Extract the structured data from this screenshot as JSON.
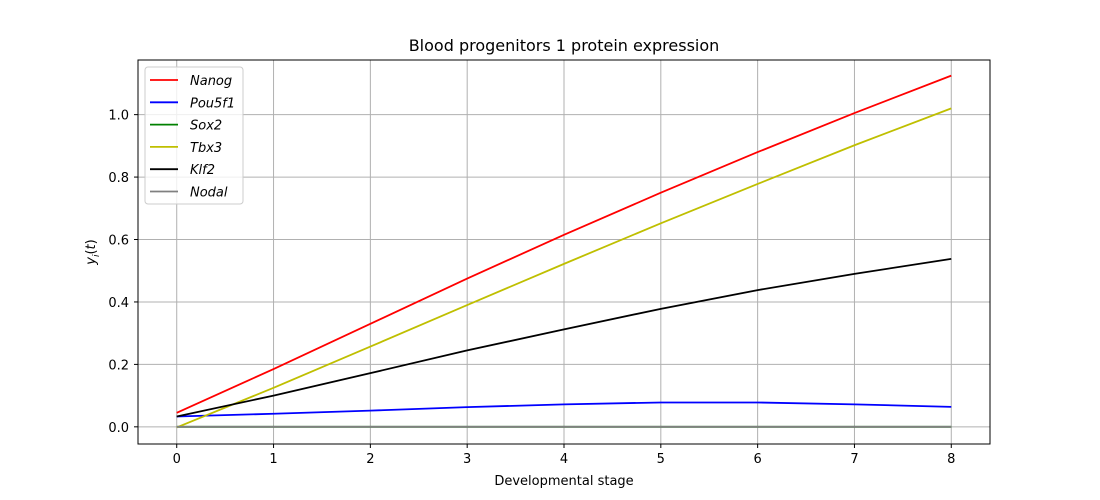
{
  "chart_data": {
    "type": "line",
    "title": "Blood progenitors 1 protein expression",
    "xlabel": "Developmental stage",
    "ylabel": "y_i(t)",
    "xlim": [
      -0.4,
      8.4
    ],
    "ylim": [
      -0.055,
      1.175
    ],
    "xticks": [
      0,
      1,
      2,
      3,
      4,
      5,
      6,
      7,
      8
    ],
    "yticks": [
      0.0,
      0.2,
      0.4,
      0.6,
      0.8,
      1.0
    ],
    "ytick_labels": [
      "0.0",
      "0.2",
      "0.4",
      "0.6",
      "0.8",
      "1.0"
    ],
    "grid": true,
    "legend_position": "top-left",
    "x": [
      0,
      1,
      2,
      3,
      4,
      5,
      6,
      7,
      8
    ],
    "series": [
      {
        "name": "Nanog",
        "color": "#ff0000",
        "values": [
          0.045,
          0.185,
          0.33,
          0.475,
          0.615,
          0.75,
          0.88,
          1.005,
          1.125
        ]
      },
      {
        "name": "Pou5f1",
        "color": "#0000ff",
        "values": [
          0.033,
          0.042,
          0.052,
          0.063,
          0.072,
          0.078,
          0.078,
          0.072,
          0.064
        ]
      },
      {
        "name": "Sox2",
        "color": "#008000",
        "values": [
          0.0,
          0.0,
          0.0,
          0.0,
          0.0,
          0.0,
          0.0,
          0.0,
          0.0
        ]
      },
      {
        "name": "Tbx3",
        "color": "#bfbf00",
        "values": [
          -0.002,
          0.125,
          0.257,
          0.39,
          0.522,
          0.652,
          0.778,
          0.902,
          1.02
        ]
      },
      {
        "name": "Klf2",
        "color": "#000000",
        "values": [
          0.033,
          0.1,
          0.172,
          0.245,
          0.312,
          0.378,
          0.438,
          0.49,
          0.538
        ]
      },
      {
        "name": "Nodal",
        "color": "#808080",
        "values": [
          0.0,
          0.0,
          0.0,
          0.0,
          0.0,
          0.0,
          0.0,
          0.0,
          0.0
        ]
      }
    ]
  }
}
